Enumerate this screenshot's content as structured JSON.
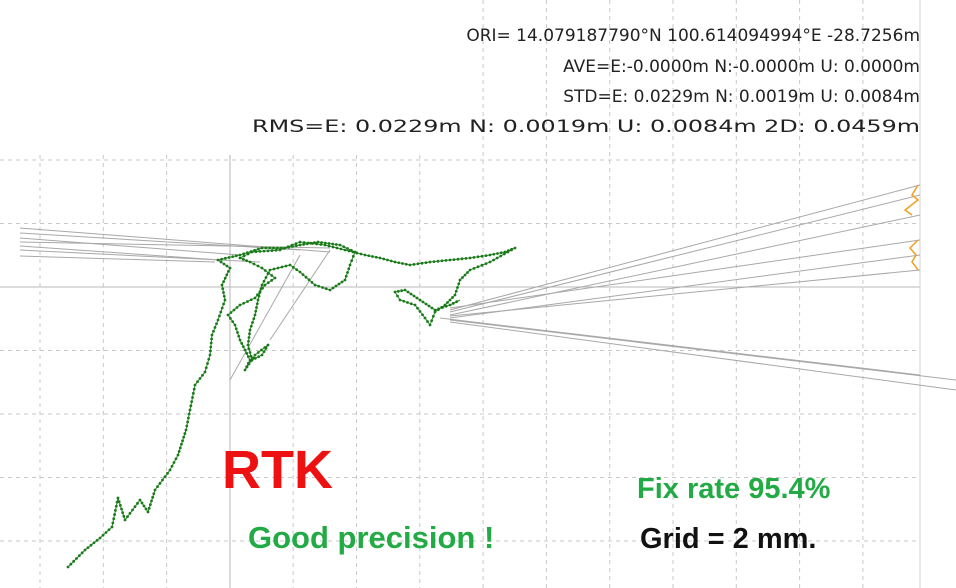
{
  "header": {
    "lines": [
      "ORI= 14.079187790°N  100.614094994°E -28.7256m",
      "AVE=E:-0.0000m N:-0.0000m U: 0.0000m",
      "STD=E: 0.0229m N: 0.0019m U: 0.0084m",
      "RMS=E: 0.0229m N: 0.0019m U: 0.0084m 2D: 0.0459m"
    ]
  },
  "annotations": {
    "mode": "RTK",
    "comment": "Good precision !",
    "fix_rate": "Fix rate 95.4%",
    "grid": "Grid = 2 mm."
  }
}
